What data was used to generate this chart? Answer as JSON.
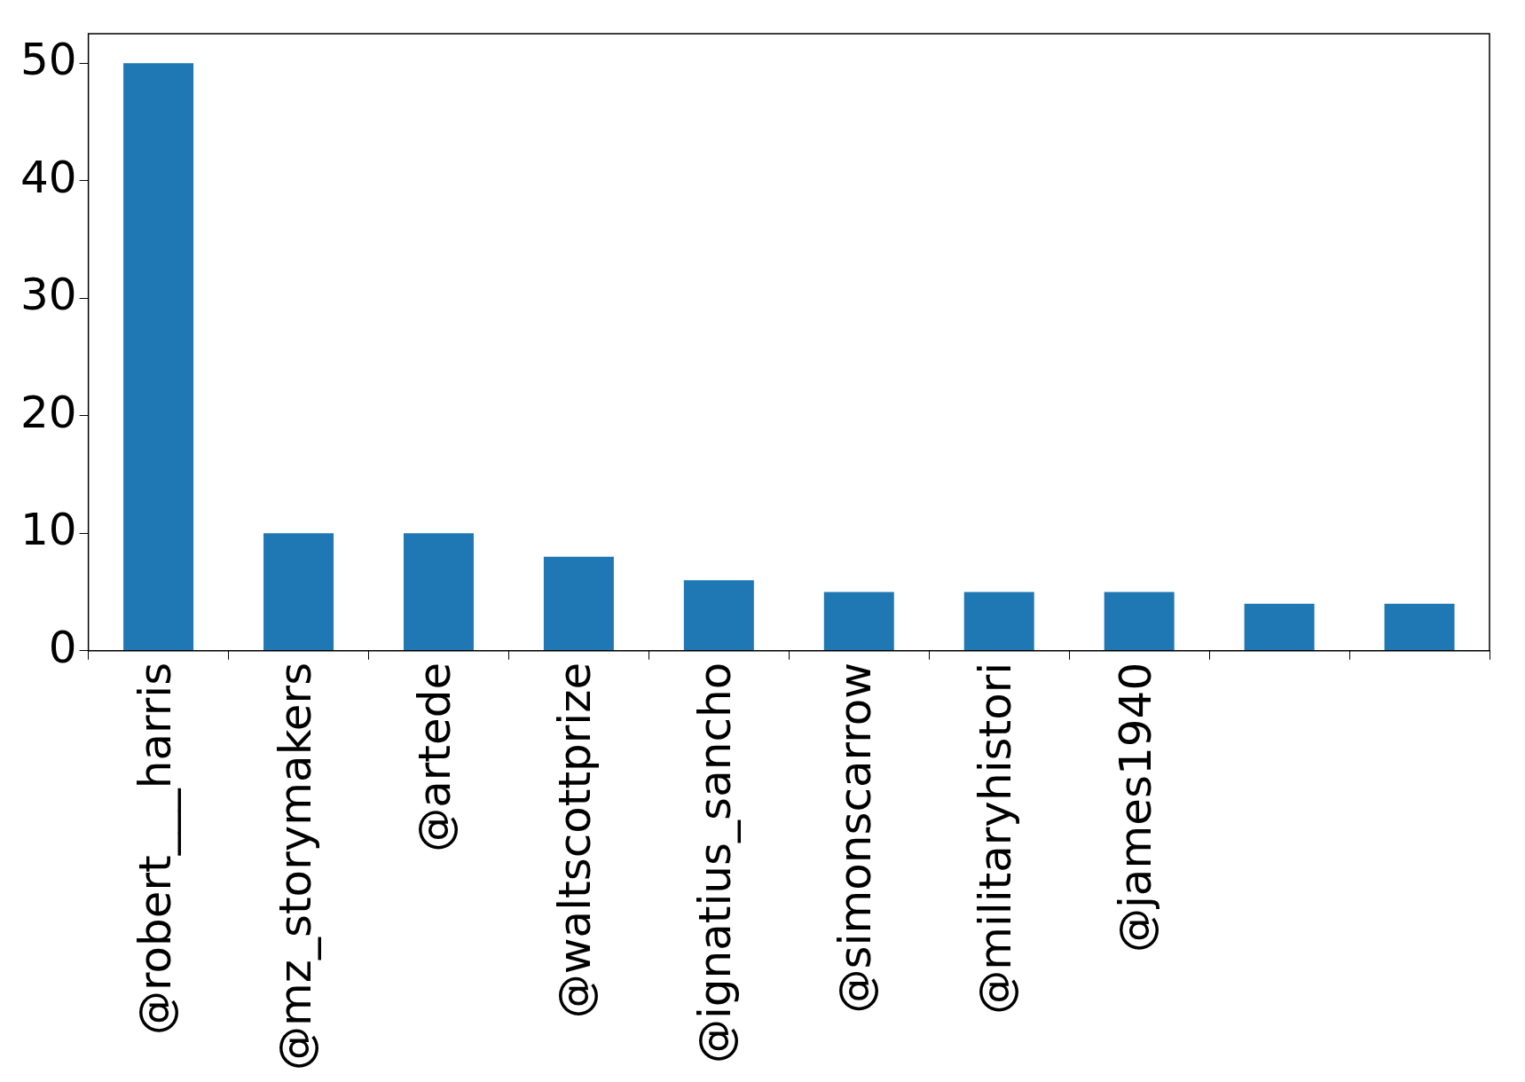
{
  "chart_data": {
    "type": "bar",
    "categories": [
      "@robert___harris",
      "@mz_storymakers",
      "@artede",
      "@waltscottprize",
      "@ignatius_sancho",
      "@simonscarrow",
      "@militaryhistori",
      "@james1940",
      null,
      null
    ],
    "values": [
      50,
      10,
      10,
      8,
      6,
      5,
      5,
      5,
      4,
      4
    ],
    "color": "#1f77b4",
    "ylim": [
      0,
      52.5
    ],
    "yticks": [
      0,
      10,
      20,
      30,
      40,
      50
    ],
    "grid": false,
    "legend": false
  }
}
